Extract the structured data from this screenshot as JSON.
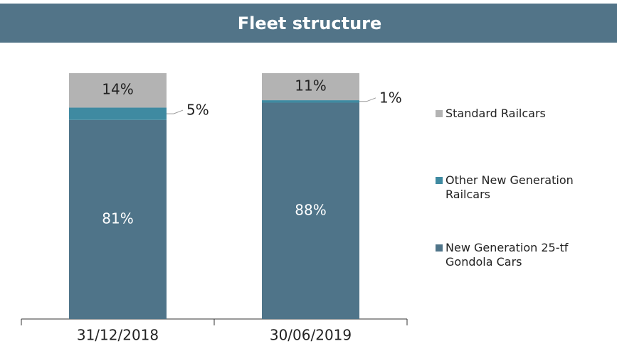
{
  "chart_data": {
    "type": "stacked_bar",
    "title": "Fleet structure",
    "categories": [
      "31/12/2018",
      "30/06/2019"
    ],
    "series": [
      {
        "name": "New Generation 25-tf Gondola Cars",
        "color": "#4f7489",
        "values": [
          81,
          88
        ],
        "value_labels": [
          "81%",
          "88%"
        ]
      },
      {
        "name": "Other New Generation Railcars",
        "color": "#3f8aa1",
        "values": [
          5,
          1
        ],
        "value_labels": [
          "5%",
          "1%"
        ]
      },
      {
        "name": "Standard Railcars",
        "color": "#b3b3b3",
        "values": [
          14,
          11
        ],
        "value_labels": [
          "14%",
          "11%"
        ]
      }
    ],
    "ylim": [
      0,
      100
    ]
  }
}
